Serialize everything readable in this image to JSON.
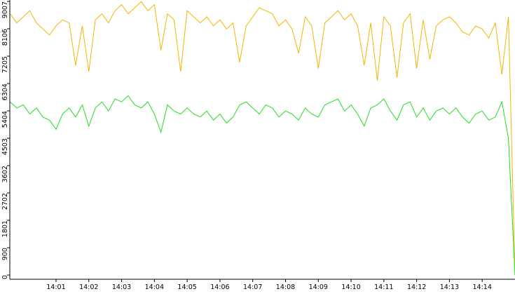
{
  "chart_data": {
    "type": "line",
    "x": [
      -0.4,
      -0.2,
      0,
      0.2,
      0.4,
      0.6,
      0.8,
      1,
      1.2,
      1.4,
      1.6,
      1.8,
      2,
      2.2,
      2.4,
      2.6,
      2.8,
      3,
      3.2,
      3.4,
      3.6,
      3.8,
      4,
      4.2,
      4.4,
      4.6,
      4.8,
      5,
      5.2,
      5.4,
      5.6,
      5.8,
      6,
      6.2,
      6.4,
      6.6,
      6.8,
      7,
      7.2,
      7.4,
      7.6,
      7.8,
      8,
      8.2,
      8.4,
      8.6,
      8.8,
      9,
      9.2,
      9.4,
      9.6,
      9.8,
      10,
      10.2,
      10.4,
      10.6,
      10.8,
      11,
      11.2,
      11.4,
      11.6,
      11.8,
      12,
      12.2,
      12.4,
      12.6,
      12.8,
      13,
      13.2,
      13.4,
      13.6,
      13.8,
      14,
      14.2,
      14.4,
      14.6,
      14.8,
      15
    ],
    "series": [
      {
        "color": "#f2b600",
        "values": [
          8600,
          8300,
          8500,
          8700,
          8300,
          8100,
          7900,
          8200,
          8400,
          8300,
          6900,
          8200,
          6700,
          8400,
          8600,
          8300,
          8700,
          8900,
          8600,
          8800,
          9000,
          8700,
          8900,
          7400,
          8600,
          8400,
          6700,
          8700,
          8500,
          8300,
          8500,
          8200,
          8400,
          8100,
          8300,
          7000,
          8200,
          8500,
          8800,
          8700,
          8600,
          8200,
          8400,
          8100,
          7300,
          8500,
          8200,
          6800,
          8300,
          8500,
          8700,
          8400,
          8600,
          8200,
          6900,
          8300,
          6400,
          8500,
          8200,
          6500,
          8300,
          8600,
          6800,
          8400,
          7100,
          8200,
          8400,
          8500,
          8300,
          8000,
          7900,
          8200,
          8100,
          7800,
          8300,
          6600,
          8500,
          0
        ]
      },
      {
        "color": "#22dd22",
        "values": [
          5700,
          5500,
          5600,
          5300,
          5500,
          5200,
          5100,
          4800,
          5300,
          5500,
          5200,
          5600,
          4900,
          5500,
          5700,
          5400,
          5800,
          5700,
          5900,
          5600,
          5500,
          5700,
          5300,
          4700,
          5600,
          5400,
          5300,
          5500,
          5300,
          5200,
          5400,
          5100,
          5300,
          5000,
          5200,
          5600,
          5700,
          5500,
          5300,
          5600,
          5500,
          5200,
          5400,
          5300,
          5100,
          5500,
          5300,
          5200,
          5600,
          5700,
          5800,
          5400,
          5600,
          5300,
          4900,
          5500,
          5600,
          5800,
          5400,
          5100,
          5600,
          5700,
          5200,
          5500,
          5100,
          5400,
          5500,
          5300,
          5500,
          5200,
          5000,
          5300,
          5400,
          5100,
          5200,
          5700,
          4500,
          0
        ]
      }
    ],
    "xlim": [
      -0.41,
      15.0
    ],
    "ylim": [
      0,
      9007
    ],
    "yticks": [
      0,
      900,
      1801,
      2702,
      3602,
      4503,
      5404,
      6304,
      7205,
      8106,
      9007
    ],
    "xticks": [
      {
        "value": 1,
        "label": "14:01"
      },
      {
        "value": 2,
        "label": "14:02"
      },
      {
        "value": 3,
        "label": "14:03"
      },
      {
        "value": 4,
        "label": "14:04"
      },
      {
        "value": 5,
        "label": "14:05"
      },
      {
        "value": 6,
        "label": "14:06"
      },
      {
        "value": 7,
        "label": "14:07"
      },
      {
        "value": 8,
        "label": "14:08"
      },
      {
        "value": 9,
        "label": "14:09"
      },
      {
        "value": 10,
        "label": "14:10"
      },
      {
        "value": 11,
        "label": "14:11"
      },
      {
        "value": 12,
        "label": "14:12"
      },
      {
        "value": 13,
        "label": "14:13"
      },
      {
        "value": 14,
        "label": "14:14"
      }
    ]
  }
}
